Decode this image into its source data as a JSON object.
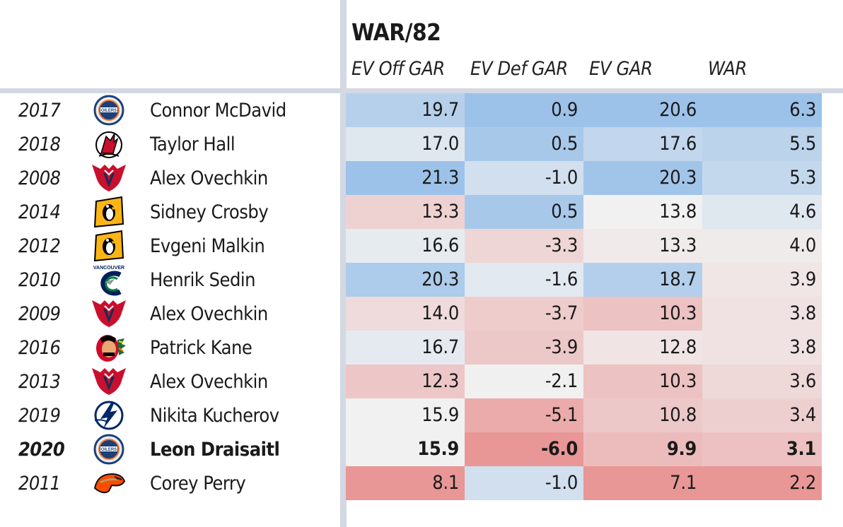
{
  "table": {
    "title": "WAR/82",
    "columns": [
      "EV Off GAR",
      "EV Def GAR",
      "EV GAR",
      "WAR"
    ],
    "rows": [
      {
        "year": "2017",
        "player": "Connor McDavid",
        "team_logo": "oilers-logo",
        "values": [
          "19.7",
          "0.9",
          "20.6",
          "6.3"
        ],
        "bold": false
      },
      {
        "year": "2018",
        "player": "Taylor Hall",
        "team_logo": "devils-logo",
        "values": [
          "17.0",
          "0.5",
          "17.6",
          "5.5"
        ],
        "bold": false
      },
      {
        "year": "2008",
        "player": "Alex Ovechkin",
        "team_logo": "capitals-logo",
        "values": [
          "21.3",
          "-1.0",
          "20.3",
          "5.3"
        ],
        "bold": false
      },
      {
        "year": "2014",
        "player": "Sidney Crosby",
        "team_logo": "penguins-logo",
        "values": [
          "13.3",
          "0.5",
          "13.8",
          "4.6"
        ],
        "bold": false
      },
      {
        "year": "2012",
        "player": "Evgeni Malkin",
        "team_logo": "penguins-logo",
        "values": [
          "16.6",
          "-3.3",
          "13.3",
          "4.0"
        ],
        "bold": false
      },
      {
        "year": "2010",
        "player": "Henrik Sedin",
        "team_logo": "canucks-logo",
        "values": [
          "20.3",
          "-1.6",
          "18.7",
          "3.9"
        ],
        "bold": false
      },
      {
        "year": "2009",
        "player": "Alex Ovechkin",
        "team_logo": "capitals-logo",
        "values": [
          "14.0",
          "-3.7",
          "10.3",
          "3.8"
        ],
        "bold": false
      },
      {
        "year": "2016",
        "player": "Patrick Kane",
        "team_logo": "blackhawks-logo",
        "values": [
          "16.7",
          "-3.9",
          "12.8",
          "3.8"
        ],
        "bold": false
      },
      {
        "year": "2013",
        "player": "Alex Ovechkin",
        "team_logo": "capitals-logo",
        "values": [
          "12.3",
          "-2.1",
          "10.3",
          "3.6"
        ],
        "bold": false
      },
      {
        "year": "2019",
        "player": "Nikita Kucherov",
        "team_logo": "lightning-logo",
        "values": [
          "15.9",
          "-5.1",
          "10.8",
          "3.4"
        ],
        "bold": false
      },
      {
        "year": "2020",
        "player": "Leon Draisaitl",
        "team_logo": "oilers-logo",
        "values": [
          "15.9",
          "-6.0",
          "9.9",
          "3.1"
        ],
        "bold": true
      },
      {
        "year": "2011",
        "player": "Corey Perry",
        "team_logo": "ducks-logo",
        "values": [
          "8.1",
          "-1.0",
          "7.1",
          "2.2"
        ],
        "bold": false
      }
    ]
  },
  "colors": {
    "divider": "#d3d8e3",
    "blue_max": "#9dc2e9",
    "red_max": "#e99696",
    "neutral": "#f1f1f1"
  }
}
